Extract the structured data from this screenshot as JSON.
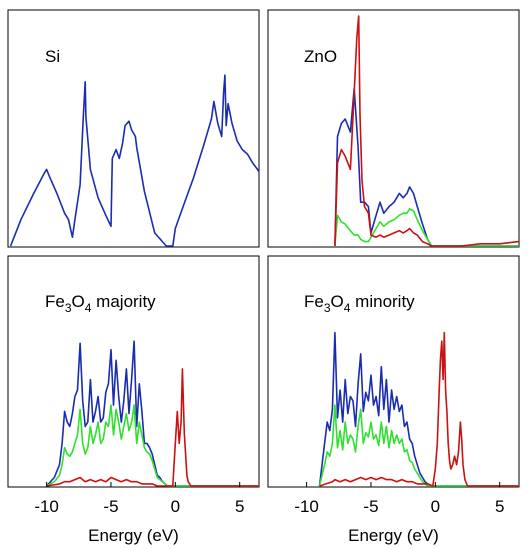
{
  "chart_data": [
    {
      "panel": "Si",
      "title": "Si",
      "type": "line",
      "xlim": [
        -13,
        6.5
      ],
      "ylim": [
        0,
        1.0
      ],
      "series": [
        {
          "color": "#1a2db0",
          "x": [
            -12.8,
            -12.0,
            -11.0,
            -10.2,
            -10.0,
            -9.8,
            -9.2,
            -8.6,
            -8.3,
            -8.0,
            -7.8,
            -7.4,
            -7.15,
            -7.0,
            -6.95,
            -6.6,
            -6.0,
            -5.4,
            -5.0,
            -4.9,
            -4.6,
            -4.35,
            -4.1,
            -3.9,
            -3.6,
            -3.4,
            -3.1,
            -3.0,
            -2.4,
            -1.6,
            -0.7,
            -0.2,
            0.0,
            0.6,
            1.4,
            2.2,
            2.8,
            3.0,
            3.3,
            3.6,
            3.75,
            3.85,
            3.95,
            4.1,
            4.4,
            4.8,
            5.2,
            5.6,
            6.0,
            6.5
          ],
          "y": [
            0.0,
            0.12,
            0.24,
            0.33,
            0.35,
            0.32,
            0.24,
            0.15,
            0.12,
            0.04,
            0.12,
            0.28,
            0.59,
            0.75,
            0.59,
            0.35,
            0.22,
            0.14,
            0.09,
            0.4,
            0.44,
            0.4,
            0.47,
            0.55,
            0.57,
            0.53,
            0.5,
            0.45,
            0.25,
            0.06,
            0.0,
            0.0,
            0.08,
            0.18,
            0.31,
            0.46,
            0.58,
            0.66,
            0.56,
            0.5,
            0.7,
            0.78,
            0.55,
            0.65,
            0.56,
            0.48,
            0.44,
            0.42,
            0.38,
            0.34
          ]
        }
      ]
    },
    {
      "panel": "ZnO",
      "title": "ZnO",
      "type": "line",
      "xlim": [
        -13,
        6.5
      ],
      "ylim": [
        0,
        1.0
      ],
      "series": [
        {
          "color": "#1a2db0",
          "x": [
            -7.8,
            -7.6,
            -7.3,
            -7.0,
            -6.6,
            -6.3,
            -6.0,
            -5.8,
            -5.5,
            -5.2,
            -5.0,
            -4.6,
            -4.3,
            -4.0,
            -3.6,
            -3.2,
            -2.8,
            -2.5,
            -2.2,
            -2.0,
            -1.7,
            -1.4,
            -1.0,
            -0.6,
            -0.3,
            6.5
          ],
          "y": [
            0.0,
            0.5,
            0.56,
            0.58,
            0.52,
            0.72,
            0.45,
            0.2,
            0.2,
            0.18,
            0.06,
            0.14,
            0.2,
            0.15,
            0.18,
            0.2,
            0.24,
            0.22,
            0.24,
            0.27,
            0.24,
            0.18,
            0.1,
            0.03,
            0.0,
            0.0
          ]
        },
        {
          "color": "#2fe02f",
          "x": [
            -7.8,
            -7.6,
            -7.3,
            -7.0,
            -6.6,
            -6.3,
            -6.0,
            -5.8,
            -5.5,
            -5.2,
            -5.0,
            -4.6,
            -4.3,
            -4.0,
            -3.6,
            -3.2,
            -2.8,
            -2.5,
            -2.2,
            -2.0,
            -1.7,
            -1.4,
            -1.0,
            -0.6,
            -0.3,
            6.5
          ],
          "y": [
            0.0,
            0.14,
            0.11,
            0.1,
            0.07,
            0.05,
            0.05,
            0.03,
            0.02,
            0.02,
            0.04,
            0.08,
            0.11,
            0.09,
            0.11,
            0.12,
            0.14,
            0.15,
            0.15,
            0.17,
            0.16,
            0.12,
            0.07,
            0.03,
            0.0,
            0.0
          ]
        },
        {
          "color": "#cc1111",
          "x": [
            -7.8,
            -7.6,
            -7.3,
            -7.0,
            -6.6,
            -6.3,
            -6.1,
            -5.95,
            -5.85,
            -5.7,
            -5.5,
            -5.2,
            -5.0,
            -4.6,
            -4.3,
            -4.0,
            -3.6,
            -3.2,
            -2.8,
            -2.5,
            -2.2,
            -2.0,
            -1.7,
            -1.4,
            -1.0,
            -0.6,
            -0.3,
            0.5,
            2.0,
            3.5,
            5.0,
            6.5
          ],
          "y": [
            0.0,
            0.38,
            0.44,
            0.41,
            0.35,
            0.7,
            0.95,
            1.05,
            0.6,
            0.3,
            0.18,
            0.15,
            0.05,
            0.04,
            0.05,
            0.04,
            0.05,
            0.06,
            0.07,
            0.06,
            0.07,
            0.08,
            0.06,
            0.05,
            0.02,
            0.01,
            0.0,
            0.0,
            0.0,
            0.01,
            0.01,
            0.02
          ]
        }
      ]
    },
    {
      "panel": "Fe3O4-majority",
      "title_parts": [
        "Fe",
        "3",
        "O",
        "4",
        " majority"
      ],
      "type": "line",
      "xlim": [
        -13,
        6.5
      ],
      "ylim": [
        0,
        1.0
      ],
      "xticks": [
        -10,
        -5,
        0,
        5
      ],
      "xlabel": "Energy (eV)",
      "series": [
        {
          "color": "#1a2db0",
          "x": [
            -10.0,
            -9.4,
            -9.0,
            -8.8,
            -8.6,
            -8.4,
            -8.2,
            -8.0,
            -7.8,
            -7.6,
            -7.4,
            -7.2,
            -7.0,
            -6.8,
            -6.6,
            -6.4,
            -6.2,
            -6.0,
            -5.8,
            -5.6,
            -5.4,
            -5.2,
            -5.0,
            -4.8,
            -4.6,
            -4.4,
            -4.2,
            -4.0,
            -3.8,
            -3.6,
            -3.4,
            -3.2,
            -3.0,
            -2.8,
            -2.6,
            -2.4,
            -2.2,
            -2.0,
            -1.8,
            -1.6,
            -1.4,
            -1.2,
            -1.0,
            -0.8,
            -0.6,
            -0.4,
            -0.2,
            0.0,
            0.2,
            0.4,
            0.6,
            0.8,
            1.0,
            1.2,
            6.5
          ],
          "y": [
            0.0,
            0.04,
            0.1,
            0.2,
            0.35,
            0.3,
            0.28,
            0.34,
            0.42,
            0.45,
            0.67,
            0.4,
            0.28,
            0.3,
            0.5,
            0.3,
            0.35,
            0.42,
            0.3,
            0.32,
            0.44,
            0.48,
            0.64,
            0.38,
            0.59,
            0.42,
            0.3,
            0.4,
            0.55,
            0.34,
            0.5,
            0.68,
            0.28,
            0.48,
            0.35,
            0.2,
            0.2,
            0.18,
            0.15,
            0.1,
            0.05,
            0.04,
            0.02,
            0.01,
            0.0,
            0.0,
            0.0,
            0.0,
            0.0,
            0.0,
            0.0,
            0.0,
            0.0,
            0.0,
            0.0
          ]
        },
        {
          "color": "#2fe02f",
          "x": [
            -10.0,
            -9.4,
            -9.0,
            -8.8,
            -8.6,
            -8.4,
            -8.2,
            -8.0,
            -7.8,
            -7.6,
            -7.4,
            -7.2,
            -7.0,
            -6.8,
            -6.6,
            -6.4,
            -6.2,
            -6.0,
            -5.8,
            -5.6,
            -5.4,
            -5.2,
            -5.0,
            -4.8,
            -4.6,
            -4.4,
            -4.2,
            -4.0,
            -3.8,
            -3.6,
            -3.4,
            -3.2,
            -3.0,
            -2.8,
            -2.6,
            -2.4,
            -2.2,
            -2.0,
            -1.8,
            -1.6,
            -1.4,
            -1.2,
            -1.0,
            -0.8,
            -0.6,
            -0.4,
            -0.2,
            0.0,
            0.2,
            0.4,
            0.6,
            0.8,
            1.0,
            1.2,
            6.5
          ],
          "y": [
            0.0,
            0.02,
            0.05,
            0.1,
            0.18,
            0.15,
            0.14,
            0.16,
            0.2,
            0.24,
            0.36,
            0.2,
            0.15,
            0.18,
            0.28,
            0.2,
            0.24,
            0.3,
            0.2,
            0.22,
            0.3,
            0.28,
            0.38,
            0.24,
            0.36,
            0.3,
            0.22,
            0.28,
            0.34,
            0.26,
            0.3,
            0.38,
            0.2,
            0.3,
            0.24,
            0.18,
            0.16,
            0.15,
            0.12,
            0.08,
            0.04,
            0.03,
            0.02,
            0.01,
            0.0,
            0.0,
            0.0,
            0.0,
            0.0,
            0.0,
            0.0,
            0.0,
            0.0,
            0.0,
            0.0
          ]
        },
        {
          "color": "#cc1111",
          "x": [
            -10.0,
            -9.0,
            -8.6,
            -8.2,
            -7.8,
            -7.4,
            -7.0,
            -6.6,
            -6.2,
            -5.8,
            -5.4,
            -5.0,
            -4.6,
            -4.2,
            -3.8,
            -3.4,
            -3.0,
            -2.6,
            -2.2,
            -1.8,
            -1.4,
            -1.0,
            -0.6,
            -0.2,
            0.0,
            0.15,
            0.3,
            0.45,
            0.55,
            0.7,
            0.8,
            0.9,
            1.0,
            1.2,
            6.5
          ],
          "y": [
            0.0,
            0.01,
            0.02,
            0.02,
            0.03,
            0.04,
            0.02,
            0.03,
            0.02,
            0.03,
            0.02,
            0.04,
            0.03,
            0.02,
            0.03,
            0.02,
            0.02,
            0.01,
            0.01,
            0.01,
            0.0,
            0.0,
            0.0,
            0.0,
            0.2,
            0.35,
            0.2,
            0.3,
            0.55,
            0.25,
            0.15,
            0.05,
            0.02,
            0.0,
            0.0
          ]
        }
      ]
    },
    {
      "panel": "Fe3O4-minority",
      "title_parts": [
        "Fe",
        "3",
        "O",
        "4",
        " minority"
      ],
      "type": "line",
      "xlim": [
        -13,
        6.5
      ],
      "ylim": [
        0,
        1.0
      ],
      "xticks": [
        -10,
        -5,
        0,
        5
      ],
      "xlabel": "Energy (eV)",
      "series": [
        {
          "color": "#1a2db0",
          "x": [
            -9.0,
            -8.6,
            -8.4,
            -8.2,
            -8.0,
            -7.8,
            -7.6,
            -7.4,
            -7.2,
            -7.0,
            -6.8,
            -6.6,
            -6.4,
            -6.2,
            -6.0,
            -5.8,
            -5.6,
            -5.4,
            -5.2,
            -5.0,
            -4.8,
            -4.6,
            -4.4,
            -4.2,
            -4.0,
            -3.8,
            -3.6,
            -3.4,
            -3.2,
            -3.0,
            -2.8,
            -2.6,
            -2.4,
            -2.2,
            -2.0,
            -1.8,
            -1.6,
            -1.4,
            -1.2,
            -1.0,
            -0.8,
            -0.6,
            -0.4,
            -0.2,
            0.0,
            6.5
          ],
          "y": [
            0.0,
            0.2,
            0.3,
            0.26,
            0.36,
            0.72,
            0.32,
            0.45,
            0.3,
            0.5,
            0.34,
            0.42,
            0.4,
            0.28,
            0.48,
            0.62,
            0.35,
            0.44,
            0.4,
            0.52,
            0.38,
            0.42,
            0.33,
            0.56,
            0.36,
            0.5,
            0.3,
            0.45,
            0.36,
            0.42,
            0.35,
            0.38,
            0.28,
            0.3,
            0.22,
            0.2,
            0.14,
            0.1,
            0.06,
            0.04,
            0.02,
            0.01,
            0.0,
            0.0,
            0.0,
            0.0
          ]
        },
        {
          "color": "#2fe02f",
          "x": [
            -9.0,
            -8.6,
            -8.4,
            -8.2,
            -8.0,
            -7.8,
            -7.6,
            -7.4,
            -7.2,
            -7.0,
            -6.8,
            -6.6,
            -6.4,
            -6.2,
            -6.0,
            -5.8,
            -5.6,
            -5.4,
            -5.2,
            -5.0,
            -4.8,
            -4.6,
            -4.4,
            -4.2,
            -4.0,
            -3.8,
            -3.6,
            -3.4,
            -3.2,
            -3.0,
            -2.8,
            -2.6,
            -2.4,
            -2.2,
            -2.0,
            -1.8,
            -1.6,
            -1.4,
            -1.2,
            -1.0,
            -0.8,
            -0.6,
            -0.4,
            -0.2,
            0.0,
            6.5
          ],
          "y": [
            0.0,
            0.1,
            0.16,
            0.14,
            0.2,
            0.38,
            0.18,
            0.26,
            0.17,
            0.3,
            0.2,
            0.24,
            0.22,
            0.16,
            0.28,
            0.36,
            0.2,
            0.25,
            0.23,
            0.3,
            0.22,
            0.24,
            0.19,
            0.3,
            0.2,
            0.28,
            0.18,
            0.26,
            0.2,
            0.24,
            0.2,
            0.22,
            0.16,
            0.17,
            0.12,
            0.11,
            0.08,
            0.06,
            0.04,
            0.02,
            0.01,
            0.0,
            0.0,
            0.0,
            0.0,
            0.0
          ]
        },
        {
          "color": "#cc1111",
          "x": [
            -9.0,
            -8.0,
            -7.8,
            -7.4,
            -7.0,
            -6.6,
            -6.2,
            -5.8,
            -5.4,
            -5.0,
            -4.6,
            -4.2,
            -3.8,
            -3.4,
            -3.0,
            -2.6,
            -2.2,
            -1.8,
            -1.4,
            -1.0,
            -0.6,
            -0.2,
            0.0,
            0.15,
            0.3,
            0.4,
            0.5,
            0.6,
            0.7,
            0.8,
            0.9,
            1.0,
            1.1,
            1.2,
            1.35,
            1.5,
            1.65,
            1.8,
            1.95,
            2.05,
            2.15,
            2.3,
            2.5,
            6.5
          ],
          "y": [
            0.0,
            0.02,
            0.03,
            0.02,
            0.03,
            0.02,
            0.03,
            0.04,
            0.03,
            0.04,
            0.03,
            0.04,
            0.03,
            0.03,
            0.02,
            0.03,
            0.02,
            0.02,
            0.01,
            0.01,
            0.01,
            0.0,
            0.08,
            0.2,
            0.45,
            0.6,
            0.68,
            0.5,
            0.72,
            0.45,
            0.35,
            0.2,
            0.12,
            0.08,
            0.1,
            0.14,
            0.1,
            0.16,
            0.3,
            0.22,
            0.1,
            0.03,
            0.0,
            0.0
          ]
        }
      ]
    }
  ]
}
